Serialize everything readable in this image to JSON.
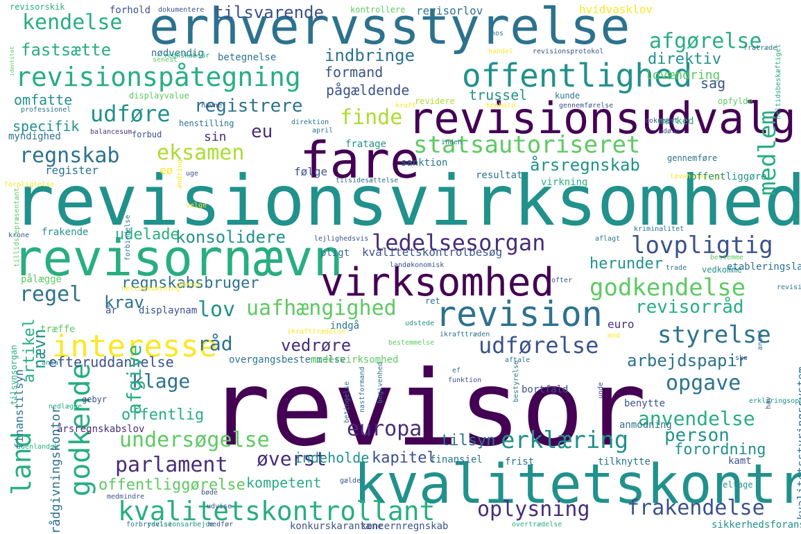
{
  "palette": [
    "#440154",
    "#472d7b",
    "#3b528b",
    "#2c728e",
    "#21918c",
    "#28ae80",
    "#5ec962",
    "#addc30",
    "#fde725"
  ],
  "words": [
    {
      "text": "revisor",
      "color": "#440154"
    },
    {
      "text": "revisionsvirksomhed",
      "color": "#21918c"
    },
    {
      "text": "erhvervsstyrelse",
      "color": "#2c728e"
    },
    {
      "text": "kvalitetskontrol",
      "color": "#21918c"
    },
    {
      "text": "revisornævn",
      "color": "#28ae80"
    },
    {
      "text": "revisionsudvalg",
      "color": "#440154"
    },
    {
      "text": "fare",
      "color": "#440154"
    },
    {
      "text": "virksomhed",
      "color": "#440154"
    },
    {
      "text": "revision",
      "color": "#2c728e"
    },
    {
      "text": "offentlighed",
      "color": "#21918c"
    },
    {
      "text": "revisionspåtegning",
      "color": "#28ae80"
    },
    {
      "text": "kvalitetskontrollant",
      "color": "#28ae80"
    },
    {
      "text": "interesse",
      "color": "#fde725"
    },
    {
      "text": "statsautoriseret",
      "color": "#5ec962"
    },
    {
      "text": "godkendelse",
      "color": "#5ec962"
    },
    {
      "text": "ledelsesorgan",
      "color": "#472d7b"
    },
    {
      "text": "lovpligtig",
      "color": "#3b528b"
    },
    {
      "text": "styrelse",
      "color": "#2c728e"
    },
    {
      "text": "uafhængighed",
      "color": "#5ec962"
    },
    {
      "text": "opgave",
      "color": "#2c728e"
    },
    {
      "text": "erklæring",
      "color": "#21918c"
    },
    {
      "text": "europa",
      "color": "#472d7b"
    },
    {
      "text": "undersøgelse",
      "color": "#5ec962"
    },
    {
      "text": "parlament",
      "color": "#472d7b"
    },
    {
      "text": "frakendelse",
      "color": "#3b528b"
    },
    {
      "text": "oplysning",
      "color": "#472d7b"
    },
    {
      "text": "kendelse",
      "color": "#28ae80"
    },
    {
      "text": "afgørelse",
      "color": "#28ae80"
    },
    {
      "text": "fastsætte",
      "color": "#28ae80"
    },
    {
      "text": "direktiv",
      "color": "#21918c"
    },
    {
      "text": "udføre",
      "color": "#21918c"
    },
    {
      "text": "finde",
      "color": "#addc30"
    },
    {
      "text": "medlem",
      "color": "#28ae80"
    },
    {
      "text": "regnskab",
      "color": "#2c728e"
    },
    {
      "text": "eksamen",
      "color": "#addc30"
    },
    {
      "text": "eu",
      "color": "#472d7b"
    },
    {
      "text": "registrere",
      "color": "#2c728e"
    },
    {
      "text": "årsregnskab",
      "color": "#21918c"
    },
    {
      "text": "regel",
      "color": "#2c728e"
    },
    {
      "text": "lov",
      "color": "#21918c"
    },
    {
      "text": "revisorråd",
      "color": "#28ae80"
    },
    {
      "text": "klage",
      "color": "#2c728e"
    },
    {
      "text": "anvendelse",
      "color": "#28ae80"
    },
    {
      "text": "person",
      "color": "#21918c"
    },
    {
      "text": "land",
      "color": "#28ae80"
    },
    {
      "text": "godkende",
      "color": "#28ae80"
    },
    {
      "text": "øverst",
      "color": "#472d7b"
    },
    {
      "text": "udførelse",
      "color": "#3b528b"
    },
    {
      "text": "råd",
      "color": "#2c728e"
    },
    {
      "text": "vedrøre",
      "color": "#472d7b"
    },
    {
      "text": "arbejdspapir",
      "color": "#2c728e"
    },
    {
      "text": "tilsvarende",
      "color": "#3b528b"
    },
    {
      "text": "indbringe",
      "color": "#2c728e"
    },
    {
      "text": "lovændring",
      "color": "#5ec962"
    },
    {
      "text": "formand",
      "color": "#3b528b"
    },
    {
      "text": "omfatte",
      "color": "#21918c"
    },
    {
      "text": "pågældende",
      "color": "#3b528b"
    },
    {
      "text": "trussel",
      "color": "#21918c"
    },
    {
      "text": "sag",
      "color": "#3b528b"
    },
    {
      "text": "specifik",
      "color": "#21918c"
    },
    {
      "text": "konsolidere",
      "color": "#21918c"
    },
    {
      "text": "udelade",
      "color": "#28ae80"
    },
    {
      "text": "herunder",
      "color": "#21918c"
    },
    {
      "text": "regnskabsbruger",
      "color": "#2c728e"
    },
    {
      "text": "krav",
      "color": "#2c728e"
    },
    {
      "text": "offentlig",
      "color": "#28ae80"
    },
    {
      "text": "tilsyn",
      "color": "#2c728e"
    },
    {
      "text": "kapitel",
      "color": "#3b528b"
    },
    {
      "text": "forordning",
      "color": "#21918c"
    },
    {
      "text": "efteruddannelse",
      "color": "#3b528b"
    },
    {
      "text": "afgive",
      "color": "#28ae80"
    },
    {
      "text": "nævn",
      "color": "#21918c"
    },
    {
      "text": "artikel",
      "color": "#28ae80"
    },
    {
      "text": "offentliggørelse",
      "color": "#5ec962"
    },
    {
      "text": "kompetent",
      "color": "#28ae80"
    },
    {
      "text": "indeholde",
      "color": "#21918c"
    },
    {
      "text": "rådgivningskontor",
      "color": "#2c728e"
    },
    {
      "text": "kvalitetsstyringssystem",
      "color": "#2c728e"
    },
    {
      "text": "revisorskik",
      "color": "#28ae80"
    },
    {
      "text": "forhold",
      "color": "#3b528b"
    },
    {
      "text": "dokumentere",
      "color": "#3b528b"
    },
    {
      "text": "kontrollere",
      "color": "#5ec962"
    },
    {
      "text": "revisorlov",
      "color": "#2c728e"
    },
    {
      "text": "hvidvasklov",
      "color": "#fde725"
    },
    {
      "text": "hos",
      "color": "#2c728e"
    },
    {
      "text": "fratræde",
      "color": "#2c728e"
    },
    {
      "text": "nødvendig",
      "color": "#2c728e"
    },
    {
      "text": "regnskabsår",
      "color": "#28ae80"
    },
    {
      "text": "betegnelse",
      "color": "#2c728e"
    },
    {
      "text": "handel",
      "color": "#fde725"
    },
    {
      "text": "revisionsprotokol",
      "color": "#3b528b"
    },
    {
      "text": "identitet",
      "color": "#5ec962"
    },
    {
      "text": "senest",
      "color": "#5ec962"
    },
    {
      "text": "displayvalue",
      "color": "#5ec962"
    },
    {
      "text": "kunde",
      "color": "#2c728e"
    },
    {
      "text": "revidere",
      "color": "#addc30"
    },
    {
      "text": "marked",
      "color": "#28ae80"
    },
    {
      "text": "opfylde",
      "color": "#5ec962"
    },
    {
      "text": "professionel",
      "color": "#2c728e"
    },
    {
      "text": "nævne",
      "color": "#3b528b"
    },
    {
      "text": "kraft",
      "color": "#fde725"
    },
    {
      "text": "henhold",
      "color": "#fde725"
    },
    {
      "text": "gennemførelse",
      "color": "#3b528b"
    },
    {
      "text": "myndighed",
      "color": "#2c728e"
    },
    {
      "text": "balancesum",
      "color": "#472d7b"
    },
    {
      "text": "forbud",
      "color": "#3b528b"
    },
    {
      "text": "henstilling",
      "color": "#2c728e"
    },
    {
      "text": "direktion",
      "color": "#2c728e"
    },
    {
      "text": "april",
      "color": "#2c728e"
    },
    {
      "text": "dokument",
      "color": "#3b528b"
    },
    {
      "text": "udøve",
      "color": "#3b528b"
    },
    {
      "text": "sin",
      "color": "#472d7b"
    },
    {
      "text": "fratage",
      "color": "#21918c"
    },
    {
      "text": "inden",
      "color": "#2c728e"
    },
    {
      "text": "gennemføre",
      "color": "#2c728e"
    },
    {
      "text": "register",
      "color": "#2c728e"
    },
    {
      "text": "eø",
      "color": "#fde725"
    },
    {
      "text": "følge",
      "color": "#3b528b"
    },
    {
      "text": "sanktion",
      "color": "#2c728e"
    },
    {
      "text": "uge",
      "color": "#3b528b"
    },
    {
      "text": "tilsidesættelse",
      "color": "#2c728e"
    },
    {
      "text": "resultat",
      "color": "#2c728e"
    },
    {
      "text": "virkning",
      "color": "#28ae80"
    },
    {
      "text": "tavshedspligt",
      "color": "#fde725"
    },
    {
      "text": "offentliggøre",
      "color": "#21918c"
    },
    {
      "text": "forpligtelse",
      "color": "#fde725"
    },
    {
      "text": "ændring",
      "color": "#fde725"
    },
    {
      "text": "velge",
      "color": "#fde725"
    },
    {
      "text": "krone",
      "color": "#3b528b"
    },
    {
      "text": "frakende",
      "color": "#21918c"
    },
    {
      "text": "kriminalitet",
      "color": "#2c728e"
    },
    {
      "text": "lejlighedsvis",
      "color": "#3b528b"
    },
    {
      "text": "aflagt",
      "color": "#2c728e"
    },
    {
      "text": "pligt",
      "color": "#2c728e"
    },
    {
      "text": "kvalitetskontrolbesøg",
      "color": "#3b528b"
    },
    {
      "text": "landøkonomisk",
      "color": "#3b528b"
    },
    {
      "text": "bestemme",
      "color": "#5ec962"
    },
    {
      "text": "vedkomme",
      "color": "#21918c"
    },
    {
      "text": "etableringsland",
      "color": "#2c728e"
    },
    {
      "text": "trade",
      "color": "#2c728e"
    },
    {
      "text": "forbindelse",
      "color": "#2c728e"
    },
    {
      "text": "pålægge",
      "color": "#5ec962"
    },
    {
      "text": "udpege",
      "color": "#fde725"
    },
    {
      "text": "ofter",
      "color": "#3b528b"
    },
    {
      "text": "revisionsopgave",
      "color": "#2c728e"
    },
    {
      "text": "nettoomsætning",
      "color": "#fde725"
    },
    {
      "text": "ret",
      "color": "#2c728e"
    },
    {
      "text": "år",
      "color": "#3b528b"
    },
    {
      "text": "displaynam",
      "color": "#3b528b"
    },
    {
      "text": "træffe",
      "color": "#5ec962"
    },
    {
      "text": "indgå",
      "color": "#2c728e"
    },
    {
      "text": "udstede",
      "color": "#21918c"
    },
    {
      "text": "euro",
      "color": "#472d7b"
    },
    {
      "text": "ikrafttrædelse",
      "color": "#fde725"
    },
    {
      "text": "ikrafttræden",
      "color": "#2c728e"
    },
    {
      "text": "mod",
      "color": "#fde725"
    },
    {
      "text": "bestemmelse",
      "color": "#5ec962"
    },
    {
      "text": "overgangsbestemmelse",
      "color": "#2c728e"
    },
    {
      "text": "modervirksomhed",
      "color": "#5ec962"
    },
    {
      "text": "aftale",
      "color": "#2c728e"
    },
    {
      "text": "ske",
      "color": "#3b528b"
    },
    {
      "text": "ansat",
      "color": "#2c728e"
    },
    {
      "text": "antal",
      "color": "#21918c"
    },
    {
      "text": "gebyr",
      "color": "#3b528b"
    },
    {
      "text": "ef",
      "color": "#2c728e"
    },
    {
      "text": "funktion",
      "color": "#3b528b"
    },
    {
      "text": "bortfald",
      "color": "#3b528b"
    },
    {
      "text": "erklæringsopgave",
      "color": "#21918c"
    },
    {
      "text": "nedlægge",
      "color": "#28ae80"
    },
    {
      "text": "begivenhed",
      "color": "#2c728e"
    },
    {
      "text": "bestyrelse",
      "color": "#2c728e"
    },
    {
      "text": "unde",
      "color": "#3b528b"
    },
    {
      "text": "benytte",
      "color": "#3b528b"
    },
    {
      "text": "hav",
      "color": "#3b528b"
    },
    {
      "text": "anmodning",
      "color": "#2c728e"
    },
    {
      "text": "nastformand",
      "color": "#2c728e"
    },
    {
      "text": "betingelse",
      "color": "#2c728e"
    },
    {
      "text": "årsregnskabslov",
      "color": "#472d7b"
    },
    {
      "text": "udenlandsk",
      "color": "#28ae80"
    },
    {
      "text": "finansiel",
      "color": "#2c728e"
    },
    {
      "text": "frist",
      "color": "#2c728e"
    },
    {
      "text": "tilknytte",
      "color": "#2c728e"
    },
    {
      "text": "kamt",
      "color": "#3b528b"
    },
    {
      "text": "gælde",
      "color": "#3b528b"
    },
    {
      "text": "deltage",
      "color": "#21918c"
    },
    {
      "text": "medmindre",
      "color": "#3b528b"
    },
    {
      "text": "bøde",
      "color": "#3b528b"
    },
    {
      "text": "udvise",
      "color": "#3b528b"
    },
    {
      "text": "forbrydelse",
      "color": "#2c728e"
    },
    {
      "text": "revisionsarbejde",
      "color": "#21918c"
    },
    {
      "text": "medfør",
      "color": "#3b528b"
    },
    {
      "text": "konkurskarantæne",
      "color": "#3b528b"
    },
    {
      "text": "koncernregnskab",
      "color": "#3b528b"
    },
    {
      "text": "overtrædelse",
      "color": "#28ae80"
    },
    {
      "text": "sikkerhedsforanstaltning",
      "color": "#21918c"
    },
    {
      "text": "finanstilsyn",
      "color": "#2c728e"
    },
    {
      "text": "tilsynsorgan",
      "color": "#28ae80"
    },
    {
      "text": "tillidsrepræsentant",
      "color": "#5ec962"
    },
    {
      "text": "heltidsbeskæftiget",
      "color": "#28ae80"
    }
  ]
}
